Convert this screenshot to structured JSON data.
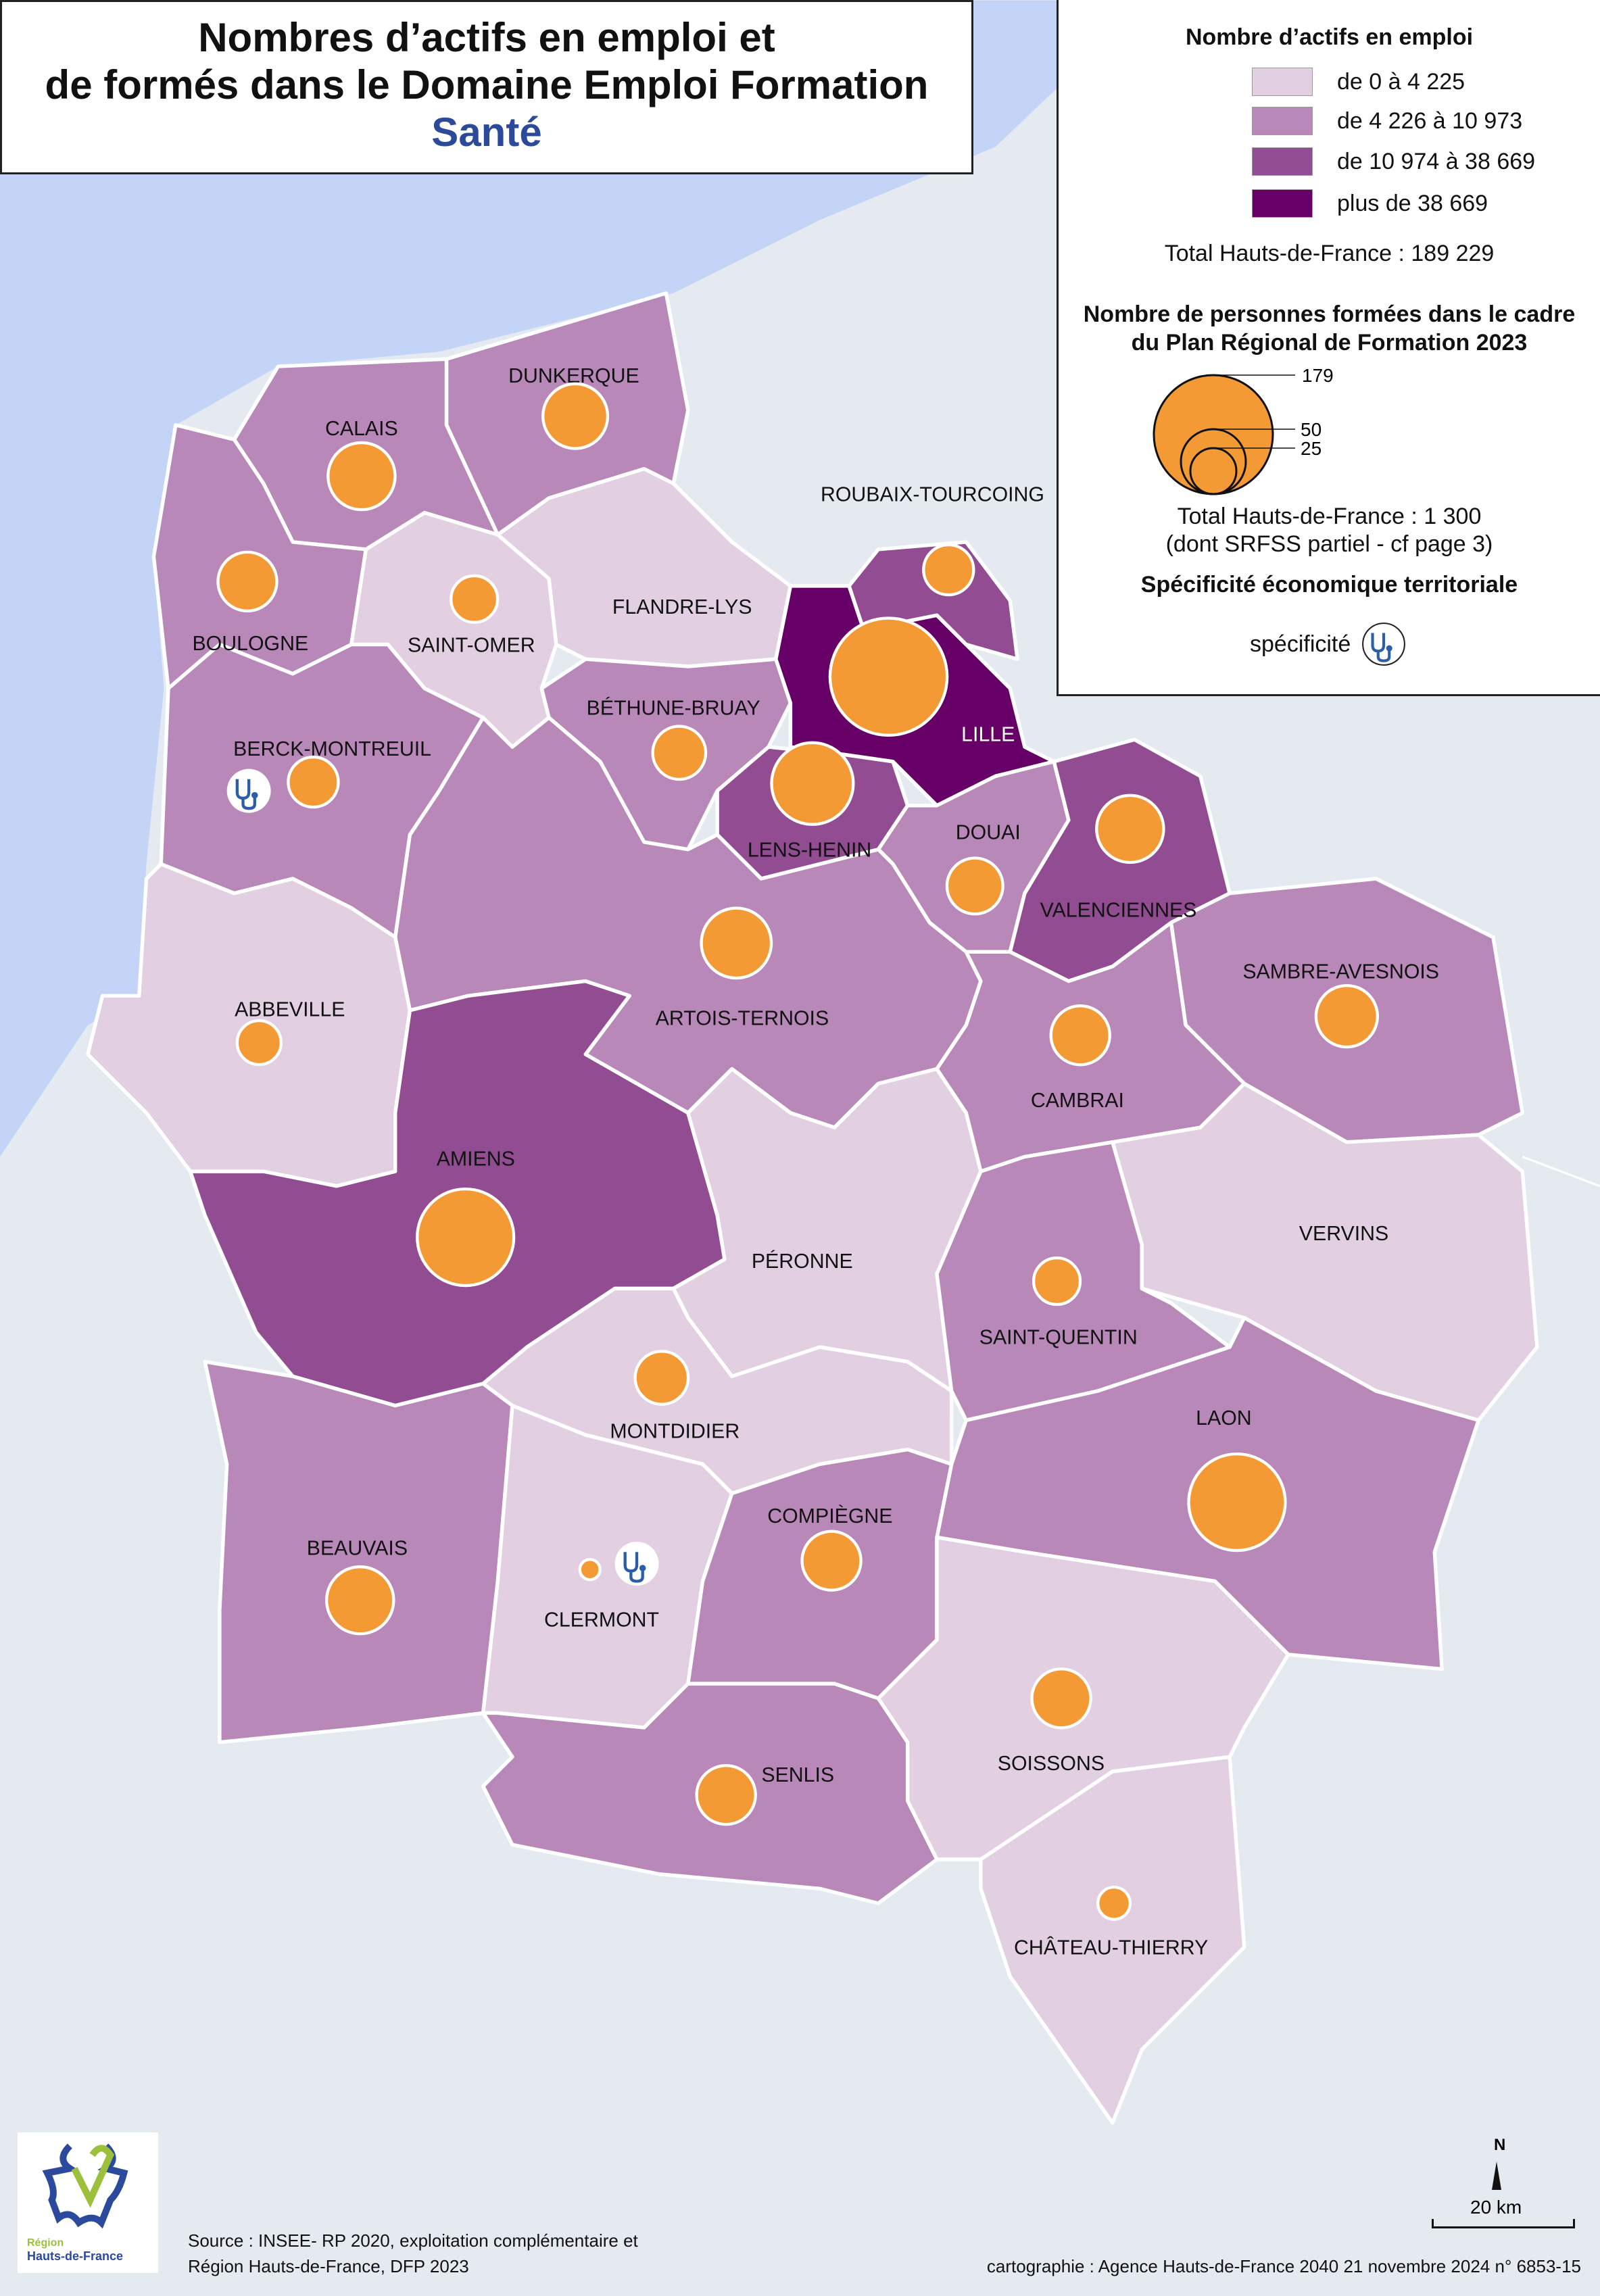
{
  "title": {
    "line1": "Nombres d’actifs en emploi et",
    "line2": "de formés dans le Domaine Emploi Formation",
    "subtitle": "Santé"
  },
  "colors": {
    "sea": "#c3d4f7",
    "land_outside": "#e5eaf1",
    "class_1": "#e2d0e2",
    "class_2": "#b888b8",
    "class_3": "#924c92",
    "class_4": "#660066",
    "circle_fill": "#f39a35",
    "specificity_icon": "#2b5ea8"
  },
  "legend": {
    "employment_title": "Nombre d’actifs en emploi",
    "classes": [
      {
        "label": "de 0 à 4 225",
        "color": "#e2d0e2"
      },
      {
        "label": "de 4 226 à 10 973",
        "color": "#b888b8"
      },
      {
        "label": "de 10 974 à 38 669",
        "color": "#924c92"
      },
      {
        "label": "plus de 38 669",
        "color": "#660066"
      }
    ],
    "employment_total": "Total Hauts-de-France : 189 229",
    "trained_title_1": "Nombre de personnes formées dans le cadre",
    "trained_title_2": "du Plan Régional de Formation 2023",
    "circle_refs": [
      "179",
      "50",
      "25"
    ],
    "trained_total": "Total Hauts-de-France : 1 300",
    "trained_note": "(dont SRFSS partiel - cf page 3)",
    "specificity_title": "Spécificité économique territoriale",
    "specificity_label": "spécificité",
    "specificity_icon": "stethoscope-icon"
  },
  "territories": [
    {
      "name": "DUNKERQUE",
      "class": 2,
      "trained": 52
    },
    {
      "name": "CALAIS",
      "class": 2,
      "trained": 56
    },
    {
      "name": "BOULOGNE",
      "class": 2,
      "trained": 43
    },
    {
      "name": "SAINT-OMER",
      "class": 1,
      "trained": 27
    },
    {
      "name": "FLANDRE-LYS",
      "class": 1,
      "trained": 0
    },
    {
      "name": "BERCK-MONTREUIL",
      "class": 2,
      "trained": 31,
      "specificity": true
    },
    {
      "name": "BÉTHUNE-BRUAY",
      "class": 2,
      "trained": 35
    },
    {
      "name": "LILLE",
      "class": 4,
      "trained": 170
    },
    {
      "name": "ROUBAIX-TOURCOING",
      "class": 3,
      "trained": 31
    },
    {
      "name": "LENS-HENIN",
      "class": 3,
      "trained": 83
    },
    {
      "name": "DOUAI",
      "class": 2,
      "trained": 39
    },
    {
      "name": "VALENCIENNES",
      "class": 3,
      "trained": 56
    },
    {
      "name": "ARTOIS-TERNOIS",
      "class": 2,
      "trained": 61
    },
    {
      "name": "ABBEVILLE",
      "class": 1,
      "trained": 24
    },
    {
      "name": "AMIENS",
      "class": 3,
      "trained": 116
    },
    {
      "name": "PÉRONNE",
      "class": 1,
      "trained": 0
    },
    {
      "name": "CAMBRAI",
      "class": 2,
      "trained": 43
    },
    {
      "name": "SAMBRE-AVESNOIS",
      "class": 2,
      "trained": 47
    },
    {
      "name": "VERVINS",
      "class": 1,
      "trained": 0
    },
    {
      "name": "SAINT-QUENTIN",
      "class": 2,
      "trained": 27
    },
    {
      "name": "LAON",
      "class": 2,
      "trained": 116
    },
    {
      "name": "MONTDIDIER",
      "class": 1,
      "trained": 35
    },
    {
      "name": "BEAUVAIS",
      "class": 2,
      "trained": 56
    },
    {
      "name": "CLERMONT",
      "class": 1,
      "trained": 5,
      "specificity": true
    },
    {
      "name": "COMPIÈGNE",
      "class": 2,
      "trained": 43
    },
    {
      "name": "SENLIS",
      "class": 2,
      "trained": 43
    },
    {
      "name": "SOISSONS",
      "class": 1,
      "trained": 43
    },
    {
      "name": "CHÂTEAU-THIERRY",
      "class": 1,
      "trained": 13
    }
  ],
  "footer": {
    "logo_text_1": "Région",
    "logo_text_2": "Hauts-de-France",
    "source_1": "Source : INSEE- RP 2020, exploitation complémentaire et",
    "source_2": "Région Hauts-de-France, DFP 2023",
    "credit": "cartographie : Agence Hauts-de-France 2040  21 novembre 2024   n° 6853-15",
    "north": "N",
    "scale": "20 km"
  }
}
